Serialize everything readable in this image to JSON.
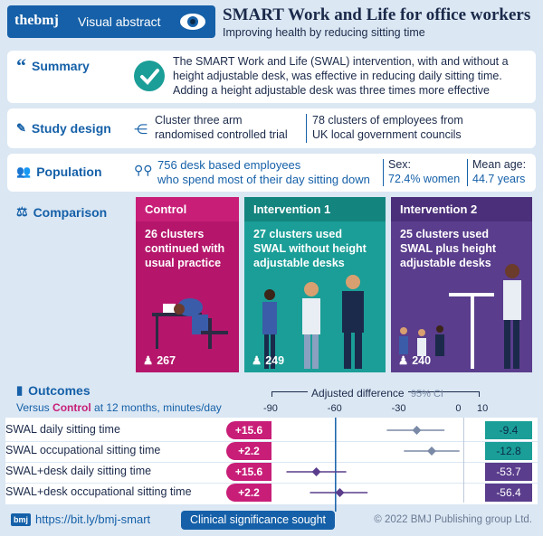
{
  "header": {
    "brand": "thebmj",
    "badge": "Visual abstract",
    "title": "SMART Work and Life for office workers",
    "subtitle": "Improving health by reducing sitting time"
  },
  "summary": {
    "label": "Summary",
    "text_1": "The SMART Work and Life (SWAL) intervention, with and without a",
    "text_2": "height adjustable desk, was effective in reducing daily sitting time.",
    "text_3": "Adding a height adjustable desk was three times more effective"
  },
  "study_design": {
    "label": "Study design",
    "design_1": "Cluster three arm",
    "design_2": "randomised controlled trial",
    "clusters_1": "78 clusters of employees from",
    "clusters_2": "UK local government councils"
  },
  "population": {
    "label": "Population",
    "participants_1": "756 desk based employees",
    "participants_2": "who spend most of their day sitting down",
    "sex_label": "Sex:",
    "sex_value": "72.4% women",
    "age_label": "Mean age:",
    "age_value": "44.7 years"
  },
  "comparison": {
    "label": "Comparison",
    "columns": [
      {
        "title": "Control",
        "line_1": "26 clusters",
        "line_2": "continued with",
        "line_3": "usual practice",
        "count": "267",
        "color": "#b5166b"
      },
      {
        "title": "Intervention 1",
        "line_1": "27 clusters used",
        "line_2": "SWAL without height",
        "line_3": "adjustable desks",
        "count": "249",
        "color": "#1a9e97"
      },
      {
        "title": "Intervention 2",
        "line_1": "25 clusters used",
        "line_2": "SWAL plus height",
        "line_3": "adjustable desks",
        "count": "240",
        "color": "#5a3d8c"
      }
    ]
  },
  "outcomes": {
    "label": "Outcomes",
    "sub_prefix": "Versus",
    "sub_control": "Control",
    "sub_suffix": "at 12 months, minutes/day",
    "axis_title": "Adjusted difference",
    "ci_label": "95% CI",
    "ticks": [
      "-90",
      "-60",
      "-30",
      "0",
      "10"
    ],
    "rows": [
      {
        "label": "SWAL daily sitting time",
        "baseline": "+15.6",
        "result": "-9.4"
      },
      {
        "label": "SWAL occupational sitting time",
        "baseline": "+2.2",
        "result": "-12.8"
      },
      {
        "label": "SWAL+desk daily sitting time",
        "baseline": "+15.6",
        "result": "-53.7"
      },
      {
        "label": "SWAL+desk occupational sitting time",
        "baseline": "+2.2",
        "result": "-56.4"
      }
    ],
    "significance_label": "Clinical significance sought"
  },
  "chart_data": {
    "type": "scatter",
    "x_range": [
      -90,
      10
    ],
    "reference_line": -60,
    "points": [
      {
        "label": "SWAL daily sitting time",
        "estimate": -22,
        "ci": [
          -36,
          -9
        ]
      },
      {
        "label": "SWAL occupational sitting time",
        "estimate": -15,
        "ci": [
          -28,
          -2
        ]
      },
      {
        "label": "SWAL+desk daily sitting time",
        "estimate": -69,
        "ci": [
          -83,
          -55
        ]
      },
      {
        "label": "SWAL+desk occupational sitting time",
        "estimate": -58,
        "ci": [
          -72,
          -45
        ]
      }
    ]
  },
  "footer": {
    "link": "https://bit.ly/bmj-smart",
    "copyright": "© 2022 BMJ Publishing group Ltd."
  },
  "colors": {
    "navy": "#1560a8",
    "magenta": "#c81e78",
    "teal": "#1a9e97",
    "purple": "#5a3d8c"
  }
}
